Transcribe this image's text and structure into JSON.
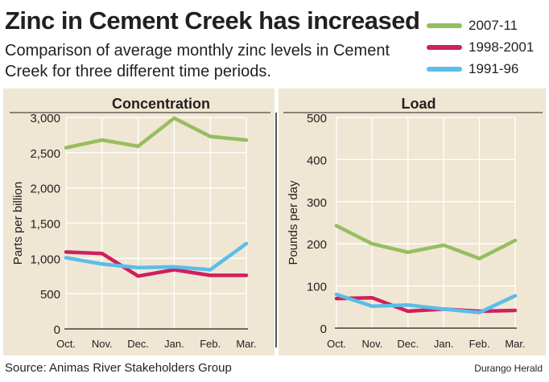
{
  "header": {
    "title": "Zinc in Cement Creek has increased",
    "subtitle": "Comparison of average monthly zinc levels in Cement Creek for three different time periods."
  },
  "legend": [
    {
      "label": "2007-11",
      "color": "#97bd61"
    },
    {
      "label": "1998-2001",
      "color": "#d01f5e"
    },
    {
      "label": "1991-96",
      "color": "#5bbde9"
    }
  ],
  "footer": {
    "source": "Source: Animas River Stakeholders Group",
    "credit": "Durango Herald"
  },
  "chart_data": [
    {
      "type": "line",
      "title": "Concentration",
      "ylabel": "Parts per billion",
      "categories": [
        "Oct.",
        "Nov.",
        "Dec.",
        "Jan.",
        "Feb.",
        "Mar."
      ],
      "ylim": [
        0,
        3000
      ],
      "yticks": [
        "0",
        "500",
        "1,000",
        "1,500",
        "2,000",
        "2,500",
        "3,000"
      ],
      "ytick_values": [
        0,
        500,
        1000,
        1500,
        2000,
        2500,
        3000
      ],
      "grid": true,
      "series": [
        {
          "name": "2007-11",
          "color": "#97bd61",
          "values": [
            2570,
            2680,
            2590,
            2990,
            2730,
            2680
          ]
        },
        {
          "name": "1998-2001",
          "color": "#d01f5e",
          "values": [
            1090,
            1070,
            750,
            840,
            760,
            760
          ]
        },
        {
          "name": "1991-96",
          "color": "#5bbde9",
          "values": [
            1010,
            920,
            870,
            880,
            840,
            1210
          ]
        }
      ]
    },
    {
      "type": "line",
      "title": "Load",
      "ylabel": "Pounds per day",
      "categories": [
        "Oct.",
        "Nov.",
        "Dec.",
        "Jan.",
        "Feb.",
        "Mar."
      ],
      "ylim": [
        0,
        500
      ],
      "yticks": [
        "0",
        "100",
        "200",
        "300",
        "400",
        "500"
      ],
      "ytick_values": [
        0,
        100,
        200,
        300,
        400,
        500
      ],
      "grid": true,
      "series": [
        {
          "name": "2007-11",
          "color": "#97bd61",
          "values": [
            243,
            200,
            180,
            197,
            165,
            208
          ]
        },
        {
          "name": "1998-2001",
          "color": "#d01f5e",
          "values": [
            70,
            72,
            40,
            45,
            40,
            42
          ]
        },
        {
          "name": "1991-96",
          "color": "#5bbde9",
          "values": [
            80,
            52,
            55,
            45,
            37,
            77
          ]
        }
      ]
    }
  ]
}
